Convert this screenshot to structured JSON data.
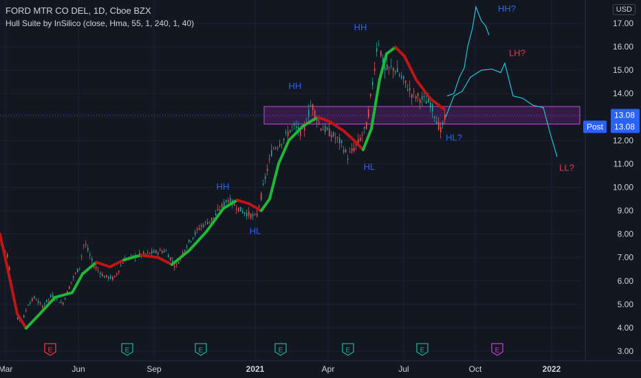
{
  "header": {
    "title": "FORD MTR CO DEL, 1D, Cboe BZX",
    "indicator": "Hull Suite by InSilico (close, Hma, 55, 1, 240, 1, 40)",
    "currency": "USD"
  },
  "colors": {
    "background": "#131722",
    "hull_up": "#1fb836",
    "hull_down": "#c21414",
    "projection": "#26c6da",
    "zone_fill": "#9c27b0",
    "annotation_blue": "#2962ff",
    "annotation_red": "#f23645",
    "price_label": "#2962ff",
    "candle_up": "#26a69a",
    "candle_down": "#ef5350"
  },
  "price_labels": {
    "last": "13.08",
    "post_label": "Post",
    "post_value": "13.08"
  },
  "chart_data": {
    "type": "line",
    "x_ticks": [
      {
        "label": "Mar",
        "bold": false
      },
      {
        "label": "Jun",
        "bold": false
      },
      {
        "label": "Sep",
        "bold": false
      },
      {
        "label": "2021",
        "bold": true
      },
      {
        "label": "Apr",
        "bold": false
      },
      {
        "label": "Jul",
        "bold": false
      },
      {
        "label": "Oct",
        "bold": false
      },
      {
        "label": "2022",
        "bold": true
      }
    ],
    "y_ticks": [
      "3.00",
      "4.00",
      "5.00",
      "6.00",
      "7.00",
      "8.00",
      "9.00",
      "10.00",
      "11.00",
      "12.00",
      "13.00",
      "14.00",
      "15.00",
      "16.00",
      "17.00"
    ],
    "ylim": [
      2.7,
      17.6
    ],
    "y_scale": "linear",
    "zone": {
      "low": 12.7,
      "high": 13.45
    },
    "hull_suite": [
      {
        "t": 0,
        "v": 8.0
      },
      {
        "t": 12,
        "v": 6.4
      },
      {
        "t": 25,
        "v": 4.6
      },
      {
        "t": 38,
        "v": 3.98
      },
      {
        "t": 55,
        "v": 4.5
      },
      {
        "t": 80,
        "v": 5.3
      },
      {
        "t": 105,
        "v": 5.5
      },
      {
        "t": 120,
        "v": 6.3
      },
      {
        "t": 140,
        "v": 6.8
      },
      {
        "t": 160,
        "v": 6.6
      },
      {
        "t": 180,
        "v": 6.9
      },
      {
        "t": 205,
        "v": 7.1
      },
      {
        "t": 230,
        "v": 7.0
      },
      {
        "t": 250,
        "v": 6.7
      },
      {
        "t": 275,
        "v": 7.3
      },
      {
        "t": 300,
        "v": 8.1
      },
      {
        "t": 325,
        "v": 9.1
      },
      {
        "t": 345,
        "v": 9.45
      },
      {
        "t": 362,
        "v": 9.3
      },
      {
        "t": 380,
        "v": 9.0
      },
      {
        "t": 392,
        "v": 9.5
      },
      {
        "t": 405,
        "v": 11.0
      },
      {
        "t": 420,
        "v": 12.0
      },
      {
        "t": 440,
        "v": 12.6
      },
      {
        "t": 462,
        "v": 13.0
      },
      {
        "t": 480,
        "v": 12.8
      },
      {
        "t": 500,
        "v": 12.4
      },
      {
        "t": 515,
        "v": 12.0
      },
      {
        "t": 528,
        "v": 11.6
      },
      {
        "t": 540,
        "v": 12.5
      },
      {
        "t": 552,
        "v": 14.6
      },
      {
        "t": 562,
        "v": 15.7
      },
      {
        "t": 575,
        "v": 15.98
      },
      {
        "t": 588,
        "v": 15.6
      },
      {
        "t": 605,
        "v": 14.6
      },
      {
        "t": 625,
        "v": 13.8
      },
      {
        "t": 645,
        "v": 13.35
      }
    ],
    "hull_up_segments": [
      [
        0.0,
        0.0
      ],
      [
        38,
        140
      ],
      [
        180,
        205
      ],
      [
        250,
        345
      ],
      [
        380,
        462
      ],
      [
        528,
        575
      ]
    ],
    "projection_series": [
      [
        {
          "t": 650,
          "v": 13.9
        },
        {
          "t": 660,
          "v": 14.0
        },
        {
          "t": 668,
          "v": 14.7
        },
        {
          "t": 675,
          "v": 15.1
        },
        {
          "t": 680,
          "v": 16.0
        },
        {
          "t": 687,
          "v": 16.8
        },
        {
          "t": 692,
          "v": 17.7
        },
        {
          "t": 700,
          "v": 17.1
        },
        {
          "t": 706,
          "v": 16.9
        },
        {
          "t": 711,
          "v": 16.5
        }
      ],
      [
        {
          "t": 648,
          "v": 13.0
        },
        {
          "t": 660,
          "v": 13.9
        },
        {
          "t": 672,
          "v": 14.1
        },
        {
          "t": 684,
          "v": 14.7
        },
        {
          "t": 700,
          "v": 15.0
        },
        {
          "t": 715,
          "v": 15.05
        },
        {
          "t": 728,
          "v": 14.9
        },
        {
          "t": 734,
          "v": 15.3
        },
        {
          "t": 740,
          "v": 14.6
        },
        {
          "t": 746,
          "v": 13.9
        },
        {
          "t": 760,
          "v": 13.8
        },
        {
          "t": 775,
          "v": 13.5
        },
        {
          "t": 790,
          "v": 13.4
        },
        {
          "t": 800,
          "v": 12.3
        },
        {
          "t": 810,
          "v": 11.3
        }
      ]
    ],
    "price_series": [
      {
        "t": 0,
        "v": 7.6
      },
      {
        "t": 10,
        "v": 7.1
      },
      {
        "t": 18,
        "v": 5.6
      },
      {
        "t": 25,
        "v": 4.4
      },
      {
        "t": 32,
        "v": 4.3
      },
      {
        "t": 40,
        "v": 5.0
      },
      {
        "t": 50,
        "v": 5.3
      },
      {
        "t": 60,
        "v": 4.9
      },
      {
        "t": 75,
        "v": 5.4
      },
      {
        "t": 90,
        "v": 5.0
      },
      {
        "t": 105,
        "v": 6.1
      },
      {
        "t": 115,
        "v": 6.6
      },
      {
        "t": 122,
        "v": 7.7
      },
      {
        "t": 135,
        "v": 6.7
      },
      {
        "t": 150,
        "v": 6.2
      },
      {
        "t": 165,
        "v": 6.1
      },
      {
        "t": 180,
        "v": 6.9
      },
      {
        "t": 200,
        "v": 7.1
      },
      {
        "t": 220,
        "v": 7.2
      },
      {
        "t": 240,
        "v": 7.3
      },
      {
        "t": 255,
        "v": 6.6
      },
      {
        "t": 270,
        "v": 7.5
      },
      {
        "t": 290,
        "v": 8.3
      },
      {
        "t": 310,
        "v": 8.7
      },
      {
        "t": 330,
        "v": 9.5
      },
      {
        "t": 350,
        "v": 9.0
      },
      {
        "t": 372,
        "v": 8.7
      },
      {
        "t": 385,
        "v": 10.4
      },
      {
        "t": 395,
        "v": 11.6
      },
      {
        "t": 410,
        "v": 12.0
      },
      {
        "t": 425,
        "v": 12.6
      },
      {
        "t": 440,
        "v": 12.3
      },
      {
        "t": 452,
        "v": 13.6
      },
      {
        "t": 465,
        "v": 12.6
      },
      {
        "t": 480,
        "v": 12.3
      },
      {
        "t": 495,
        "v": 11.9
      },
      {
        "t": 505,
        "v": 11.3
      },
      {
        "t": 520,
        "v": 11.9
      },
      {
        "t": 532,
        "v": 12.6
      },
      {
        "t": 540,
        "v": 14.2
      },
      {
        "t": 549,
        "v": 16.4
      },
      {
        "t": 558,
        "v": 15.0
      },
      {
        "t": 572,
        "v": 15.1
      },
      {
        "t": 585,
        "v": 14.6
      },
      {
        "t": 598,
        "v": 14.0
      },
      {
        "t": 610,
        "v": 13.8
      },
      {
        "t": 625,
        "v": 13.6
      },
      {
        "t": 640,
        "v": 12.4
      },
      {
        "t": 648,
        "v": 13.08
      }
    ],
    "pivot_labels": [
      {
        "text": "HH",
        "t": 429,
        "v": 14.2,
        "color": "blue"
      },
      {
        "text": "HH",
        "t": 524,
        "v": 16.7,
        "color": "blue"
      },
      {
        "text": "HH",
        "t": 324,
        "v": 9.9,
        "color": "blue"
      },
      {
        "text": "HL",
        "t": 371,
        "v": 8.0,
        "color": "blue"
      },
      {
        "text": "HL",
        "t": 537,
        "v": 10.75,
        "color": "blue"
      },
      {
        "text": "HL?",
        "t": 660,
        "v": 12.0,
        "color": "blue"
      },
      {
        "text": "HH?",
        "t": 737,
        "v": 17.5,
        "color": "blue"
      },
      {
        "text": "LH?",
        "t": 752,
        "v": 15.6,
        "color": "red"
      },
      {
        "text": "LL?",
        "t": 824,
        "v": 10.7,
        "color": "red"
      }
    ],
    "earnings_markers": [
      {
        "t": 73,
        "label": "E",
        "color": "red"
      },
      {
        "t": 185,
        "label": "E",
        "color": "green"
      },
      {
        "t": 292,
        "label": "E",
        "color": "green"
      },
      {
        "t": 408,
        "label": "E",
        "color": "green"
      },
      {
        "t": 506,
        "label": "E",
        "color": "green"
      },
      {
        "t": 614,
        "label": "E",
        "color": "green"
      },
      {
        "t": 723,
        "label": "E",
        "color": "purple"
      }
    ]
  }
}
